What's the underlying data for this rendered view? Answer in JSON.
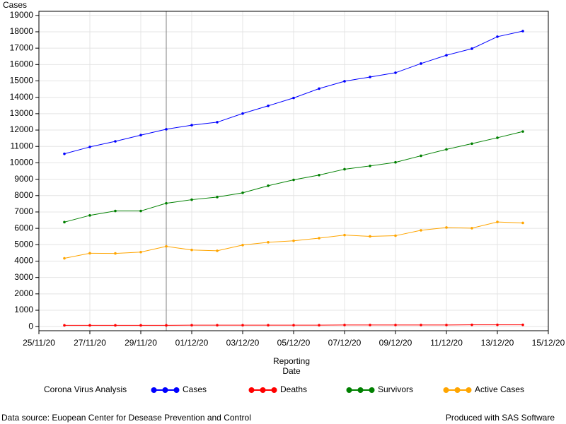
{
  "chart_data": {
    "type": "line",
    "y_label": "Cases",
    "x_label": [
      "Reporting",
      "Date"
    ],
    "x": [
      "26/11/20",
      "27/11/20",
      "28/11/20",
      "29/11/20",
      "30/11/20",
      "01/12/20",
      "02/12/20",
      "03/12/20",
      "04/12/20",
      "05/12/20",
      "06/12/20",
      "07/12/20",
      "08/12/20",
      "09/12/20",
      "10/12/20",
      "11/12/20",
      "12/12/20",
      "13/12/20",
      "14/12/20"
    ],
    "series": [
      {
        "name": "Cases",
        "color": "#0000ff",
        "values": [
          10550,
          10970,
          11310,
          11690,
          12050,
          12300,
          12480,
          13010,
          13480,
          13960,
          14530,
          14980,
          15240,
          15500,
          16060,
          16570,
          16970,
          17700,
          18040
        ]
      },
      {
        "name": "Deaths",
        "color": "#ff0000",
        "values": [
          80,
          80,
          80,
          80,
          80,
          90,
          90,
          90,
          90,
          90,
          90,
          100,
          100,
          100,
          100,
          100,
          110,
          110,
          110
        ]
      },
      {
        "name": "Survivors",
        "color": "#008000",
        "values": [
          6380,
          6790,
          7060,
          7060,
          7530,
          7750,
          7910,
          8170,
          8600,
          8960,
          9250,
          9610,
          9810,
          10030,
          10430,
          10820,
          11170,
          11530,
          11910
        ]
      },
      {
        "name": "Active Cases",
        "color": "#ffa500",
        "values": [
          4170,
          4480,
          4470,
          4550,
          4900,
          4680,
          4630,
          4980,
          5150,
          5240,
          5400,
          5590,
          5510,
          5550,
          5880,
          6050,
          6010,
          6390,
          6330
        ]
      }
    ],
    "legend_title": "Corona Virus Analysis",
    "reference_line_x": "30/11/20",
    "xlim": [
      "25/11/20",
      "15/12/20"
    ],
    "xticks": [
      "25/11/20",
      "27/11/20",
      "29/11/20",
      "01/12/20",
      "03/12/20",
      "05/12/20",
      "07/12/20",
      "09/12/20",
      "11/12/20",
      "13/12/20",
      "15/12/20"
    ],
    "ylim": [
      -250,
      19250
    ],
    "yticks": [
      0,
      1000,
      2000,
      3000,
      4000,
      5000,
      6000,
      7000,
      8000,
      9000,
      10000,
      11000,
      12000,
      13000,
      14000,
      15000,
      16000,
      17000,
      18000,
      19000
    ],
    "grid": true
  },
  "footnote_left": "Data source: Euopean Center for Desease Prevention and Control",
  "footnote_right": "Produced with SAS Software"
}
